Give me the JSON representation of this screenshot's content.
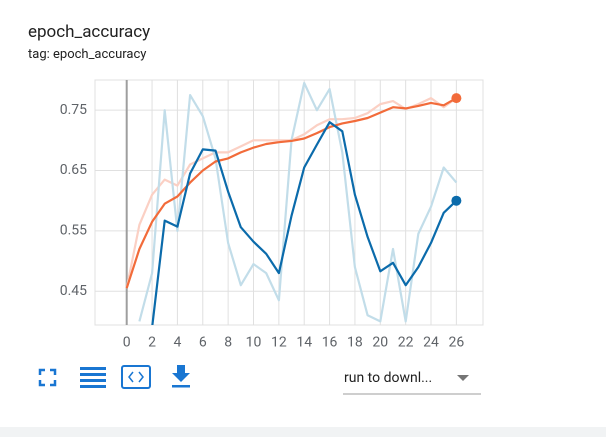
{
  "chart_data": {
    "type": "line",
    "title": "epoch_accuracy",
    "subtitle": "tag: epoch_accuracy",
    "x": [
      0,
      1,
      2,
      3,
      4,
      5,
      6,
      7,
      8,
      9,
      10,
      11,
      12,
      13,
      14,
      15,
      16,
      17,
      18,
      19,
      20,
      21,
      22,
      23,
      24,
      25,
      26
    ],
    "series": [
      {
        "color": "#fbd0c4",
        "values": [
          0.455,
          0.56,
          0.61,
          0.635,
          0.625,
          0.66,
          0.67,
          0.68,
          0.68,
          0.69,
          0.7,
          0.7,
          0.7,
          0.7,
          0.71,
          0.725,
          0.735,
          0.735,
          0.737,
          0.745,
          0.76,
          0.765,
          0.752,
          0.76,
          0.77,
          0.755,
          0.77
        ]
      },
      {
        "color": "#c2dde9",
        "values": [
          null,
          0.4,
          0.48,
          0.75,
          0.55,
          0.775,
          0.74,
          0.67,
          0.53,
          0.46,
          0.495,
          0.48,
          0.435,
          0.7,
          0.795,
          0.75,
          0.785,
          0.68,
          0.49,
          0.41,
          0.4,
          0.52,
          0.4,
          0.545,
          0.59,
          0.655,
          0.63
        ]
      },
      {
        "color": "#f26b3a",
        "values": [
          0.455,
          0.52,
          0.565,
          0.595,
          0.607,
          0.63,
          0.65,
          0.665,
          0.67,
          0.68,
          0.688,
          0.694,
          0.697,
          0.699,
          0.703,
          0.712,
          0.722,
          0.728,
          0.732,
          0.737,
          0.746,
          0.755,
          0.753,
          0.757,
          0.762,
          0.758,
          0.77
        ],
        "end_marker": true
      },
      {
        "color": "#0b6bab",
        "values": [
          null,
          null,
          0.39,
          0.567,
          0.557,
          0.645,
          0.685,
          0.683,
          0.615,
          0.556,
          0.532,
          0.512,
          0.48,
          0.575,
          0.655,
          0.693,
          0.73,
          0.715,
          0.61,
          0.54,
          0.483,
          0.497,
          0.46,
          0.49,
          0.53,
          0.58,
          0.6
        ],
        "end_marker": true
      }
    ],
    "xlim": [
      -2.5,
      28.1
    ],
    "ylim": [
      0.394,
      0.8
    ],
    "xticks": [
      0,
      2,
      4,
      6,
      8,
      10,
      12,
      14,
      16,
      18,
      20,
      22,
      24,
      26
    ],
    "yticks": [
      0.45,
      0.55,
      0.65,
      0.75
    ],
    "grid": true
  },
  "controls": {
    "download_select": "run to downl..."
  }
}
